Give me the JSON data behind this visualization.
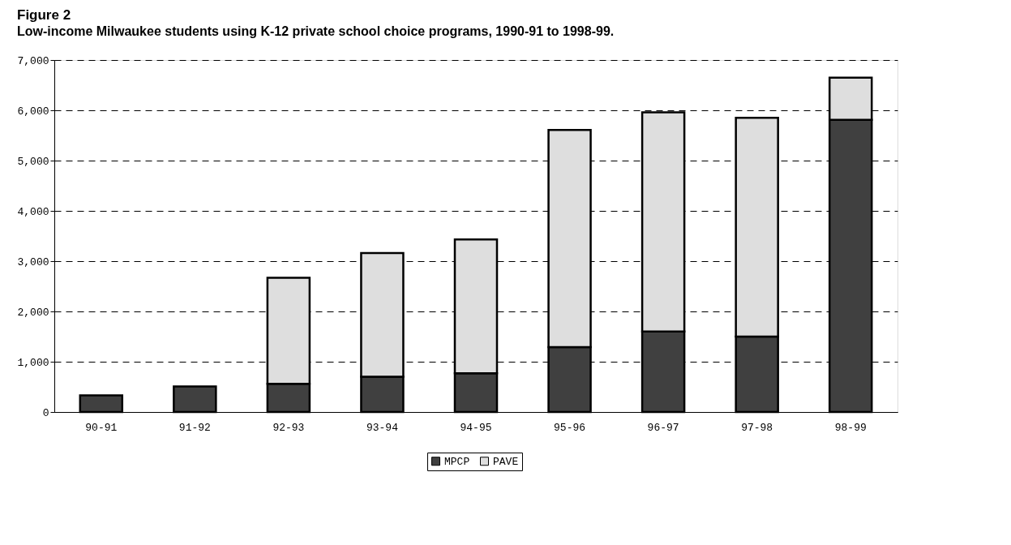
{
  "chart_data": {
    "type": "bar",
    "title": "Figure 2",
    "subtitle": "Low-income Milwaukee students using K-12 private school choice programs, 1990-91 to 1998-99.",
    "categories": [
      "90-91",
      "91-92",
      "92-93",
      "93-94",
      "94-95",
      "95-96",
      "96-97",
      "97-98",
      "98-99"
    ],
    "stacked": true,
    "series": [
      {
        "name": "MPCP",
        "color": "#404040",
        "values": [
          330,
          510,
          560,
          700,
          770,
          1290,
          1600,
          1500,
          5810
        ]
      },
      {
        "name": "PAVE",
        "color": "#dedede",
        "values": [
          null,
          null,
          2110,
          2460,
          2660,
          4320,
          4360,
          4350,
          840
        ]
      }
    ],
    "ylim": [
      0,
      7000
    ],
    "yticks": [
      0,
      {
        "value": 1000,
        "label": "1,000"
      },
      {
        "value": 2000,
        "label": "2,000"
      },
      {
        "value": 3000,
        "label": "3,000"
      },
      {
        "value": 4000,
        "label": "4,000"
      },
      {
        "value": 5000,
        "label": "5,000"
      },
      {
        "value": 6000,
        "label": "6,000"
      },
      {
        "value": 7000,
        "label": "7,000"
      }
    ],
    "grid": "y",
    "legend": "bottom"
  }
}
